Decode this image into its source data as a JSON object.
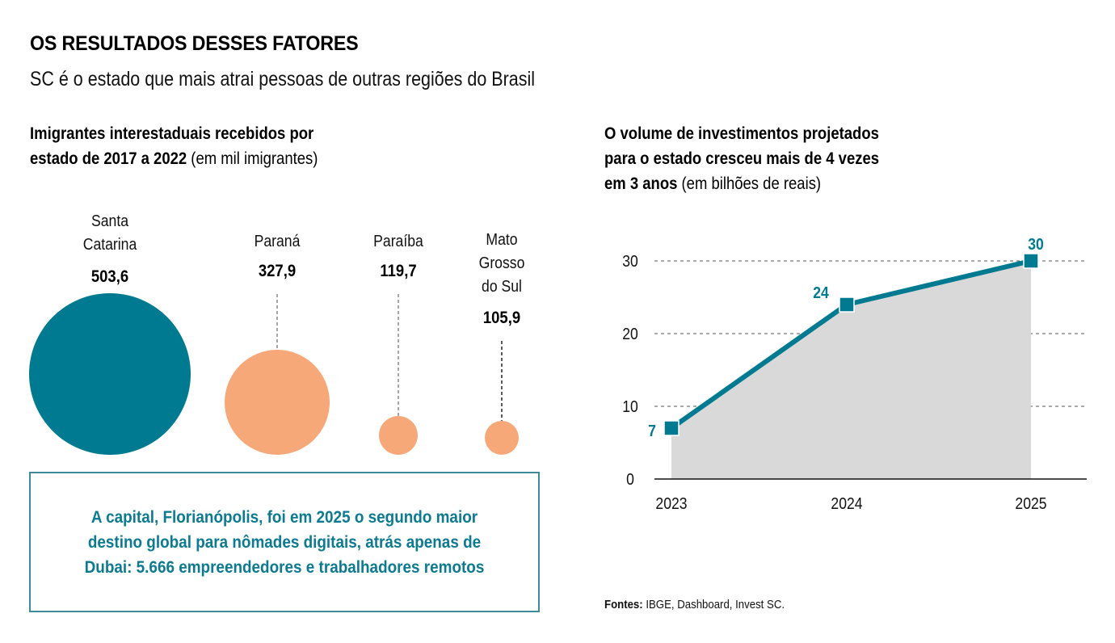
{
  "header": {
    "title": "OS RESULTADOS DESSES FATORES",
    "subtitle": "SC é o estado que mais atrai pessoas de outras regiões do Brasil"
  },
  "left_section": {
    "title_bold_1": "Imigrantes interestaduais recebidos por",
    "title_bold_2": "estado de 2017 a 2022",
    "title_light": " (em mil imigrantes)"
  },
  "right_section": {
    "title_bold_1": "O volume de investimentos projetados",
    "title_bold_2": "para o estado cresceu mais de 4 vezes",
    "title_bold_3": "em 3 anos",
    "title_light": " (em bilhões de reais)"
  },
  "callout": {
    "text": "A capital, Florianópolis, foi em 2025 o segundo maior destino global para nômades digitais, atrás apenas de Dubai: 5.666 empreendedores e trabalhadores remotos"
  },
  "sources": {
    "label": "Fontes:",
    "text": " IBGE, Dashboard, Invest SC."
  },
  "colors": {
    "teal": "#007a90",
    "orange": "#f7a878",
    "area": "#d9d9d9",
    "callout_border": "#3f8a9a"
  },
  "chart_data": [
    {
      "type": "bubble",
      "title": "Imigrantes interestaduais recebidos por estado de 2017 a 2022 (em mil imigrantes)",
      "categories": [
        "Santa Catarina",
        "Paraná",
        "Paraíba",
        "Mato Grosso do Sul"
      ],
      "label_lines": [
        [
          "Santa",
          "Catarina"
        ],
        [
          "Paraná"
        ],
        [
          "Paraíba"
        ],
        [
          "Mato",
          "Grosso",
          "do Sul"
        ]
      ],
      "values": [
        503.6,
        327.9,
        119.7,
        105.9
      ],
      "value_labels": [
        "503,6",
        "327,9",
        "119,7",
        "105,9"
      ],
      "highlight": "Santa Catarina"
    },
    {
      "type": "area",
      "title": "O volume de investimentos projetados para o estado cresceu mais de 4 vezes em 3 anos (em bilhões de reais)",
      "x": [
        "2023",
        "2024",
        "2025"
      ],
      "values": [
        7,
        24,
        30
      ],
      "value_labels": [
        "7",
        "24",
        "30"
      ],
      "ylim": [
        0,
        30
      ],
      "yticks": [
        0,
        10,
        20,
        30
      ],
      "xlabel": "",
      "ylabel": "",
      "grid": true,
      "legend": "none"
    }
  ]
}
